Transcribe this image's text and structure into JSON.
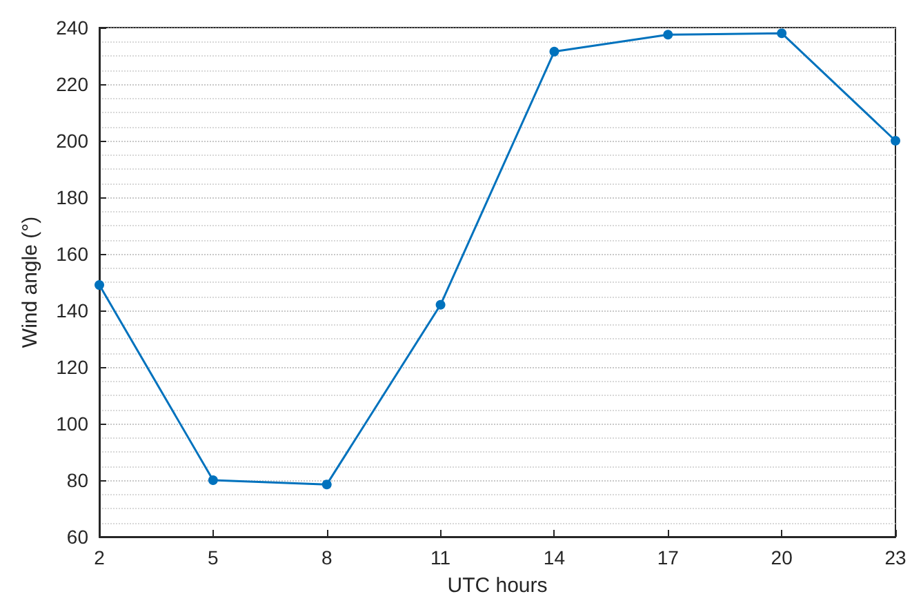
{
  "chart_data": {
    "type": "line",
    "xlabel": "UTC hours",
    "ylabel": "Wind angle (°)",
    "x": [
      2,
      5,
      8,
      11,
      14,
      17,
      20,
      23
    ],
    "series": [
      {
        "color": "#0072bd",
        "values": [
          149,
          80,
          78.5,
          142,
          231.5,
          237.5,
          238,
          200
        ]
      }
    ],
    "xlim": [
      2,
      23
    ],
    "xticks": [
      2,
      5,
      8,
      11,
      14,
      17,
      20,
      23
    ],
    "ylim": [
      60,
      240
    ],
    "yticks": [
      60,
      80,
      100,
      120,
      140,
      160,
      180,
      200,
      220,
      240
    ],
    "grid": "y",
    "marker": "circle",
    "line_style": "solid"
  }
}
